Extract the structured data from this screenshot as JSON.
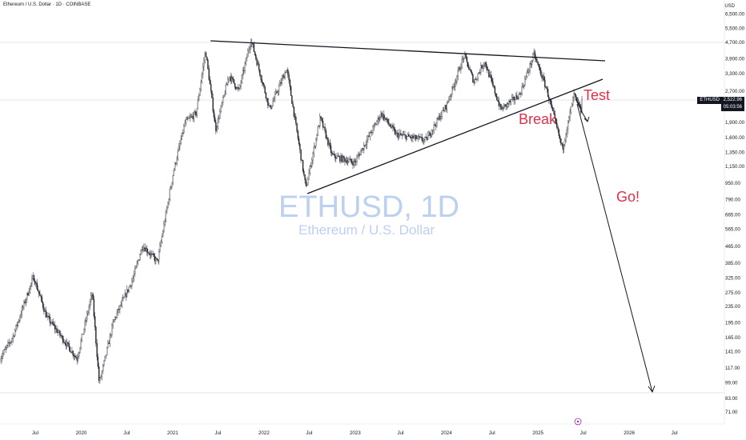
{
  "header": {
    "title": "Ethereum / U.S. Dollar · 1D · COINBASE",
    "currency": "USD"
  },
  "watermark": {
    "symbol": "ETHUSD, 1D",
    "name": "Ethereum / U.S. Dollar"
  },
  "price_tag": {
    "symbol": "ETHUSD",
    "price": "2,522.96",
    "countdown": "05:03:56"
  },
  "annotations": {
    "break": "Break",
    "test": "Test",
    "go": "Go!"
  },
  "colors": {
    "candles": "#131722",
    "annotation": "#e0304a",
    "watermark": "#bcd0ef",
    "hline": "#c9ccd3"
  },
  "chart_data": {
    "type": "candlestick",
    "scale": "log",
    "y_ticks": [
      "6,500.00",
      "5,500.00",
      "4,700.00",
      "3,900.00",
      "3,300.00",
      "2,700.00",
      "2,300.00",
      "1,900.00",
      "1,600.00",
      "1,350.00",
      "1,150.00",
      "950.00",
      "790.00",
      "665.00",
      "565.00",
      "465.00",
      "385.00",
      "325.00",
      "275.00",
      "235.00",
      "195.00",
      "165.00",
      "141.00",
      "117.00",
      "99.00",
      "83.00",
      "71.00"
    ],
    "x_ticks": [
      {
        "label": "Jul",
        "date": "2019-07-01"
      },
      {
        "label": "2020",
        "date": "2020-01-01"
      },
      {
        "label": "Jul",
        "date": "2020-07-01"
      },
      {
        "label": "2021",
        "date": "2021-01-01"
      },
      {
        "label": "Jul",
        "date": "2021-07-01"
      },
      {
        "label": "2022",
        "date": "2022-01-01"
      },
      {
        "label": "Jul",
        "date": "2022-07-01"
      },
      {
        "label": "2023",
        "date": "2023-01-01"
      },
      {
        "label": "Jul",
        "date": "2023-07-01"
      },
      {
        "label": "2024",
        "date": "2024-01-01"
      },
      {
        "label": "Jul",
        "date": "2024-07-01"
      },
      {
        "label": "2025",
        "date": "2025-01-01"
      },
      {
        "label": "Jul",
        "date": "2025-07-01"
      },
      {
        "label": "2026",
        "date": "2026-01-01"
      },
      {
        "label": "Jul",
        "date": "2026-07-01"
      }
    ],
    "price_path": [
      {
        "date": "2019-02-10",
        "price": 130
      },
      {
        "date": "2019-04-01",
        "price": 165
      },
      {
        "date": "2019-06-24",
        "price": 330
      },
      {
        "date": "2019-08-15",
        "price": 210
      },
      {
        "date": "2019-10-01",
        "price": 175
      },
      {
        "date": "2019-12-15",
        "price": 130
      },
      {
        "date": "2020-02-14",
        "price": 275
      },
      {
        "date": "2020-03-13",
        "price": 98
      },
      {
        "date": "2020-05-10",
        "price": 200
      },
      {
        "date": "2020-07-25",
        "price": 320
      },
      {
        "date": "2020-09-02",
        "price": 470
      },
      {
        "date": "2020-11-01",
        "price": 390
      },
      {
        "date": "2021-01-05",
        "price": 1100
      },
      {
        "date": "2021-02-20",
        "price": 1900
      },
      {
        "date": "2021-04-05",
        "price": 2100
      },
      {
        "date": "2021-05-12",
        "price": 4300
      },
      {
        "date": "2021-06-22",
        "price": 1750
      },
      {
        "date": "2021-08-15",
        "price": 3250
      },
      {
        "date": "2021-09-22",
        "price": 2700
      },
      {
        "date": "2021-11-10",
        "price": 4850
      },
      {
        "date": "2022-01-24",
        "price": 2200
      },
      {
        "date": "2022-04-02",
        "price": 3500
      },
      {
        "date": "2022-06-18",
        "price": 900
      },
      {
        "date": "2022-08-14",
        "price": 2000
      },
      {
        "date": "2022-10-01",
        "price": 1300
      },
      {
        "date": "2022-12-30",
        "price": 1200
      },
      {
        "date": "2023-04-15",
        "price": 2100
      },
      {
        "date": "2023-06-15",
        "price": 1650
      },
      {
        "date": "2023-10-10",
        "price": 1550
      },
      {
        "date": "2024-01-01",
        "price": 2300
      },
      {
        "date": "2024-03-12",
        "price": 4050
      },
      {
        "date": "2024-04-20",
        "price": 3000
      },
      {
        "date": "2024-06-01",
        "price": 3800
      },
      {
        "date": "2024-08-05",
        "price": 2200
      },
      {
        "date": "2024-10-20",
        "price": 2600
      },
      {
        "date": "2024-12-16",
        "price": 4100
      },
      {
        "date": "2025-02-03",
        "price": 2800
      },
      {
        "date": "2025-04-09",
        "price": 1400
      },
      {
        "date": "2025-05-25",
        "price": 2600
      },
      {
        "date": "2025-06-22",
        "price": 2150
      },
      {
        "date": "2025-06-27",
        "price": 2520
      }
    ],
    "ylim": [
      62,
      7400
    ]
  }
}
